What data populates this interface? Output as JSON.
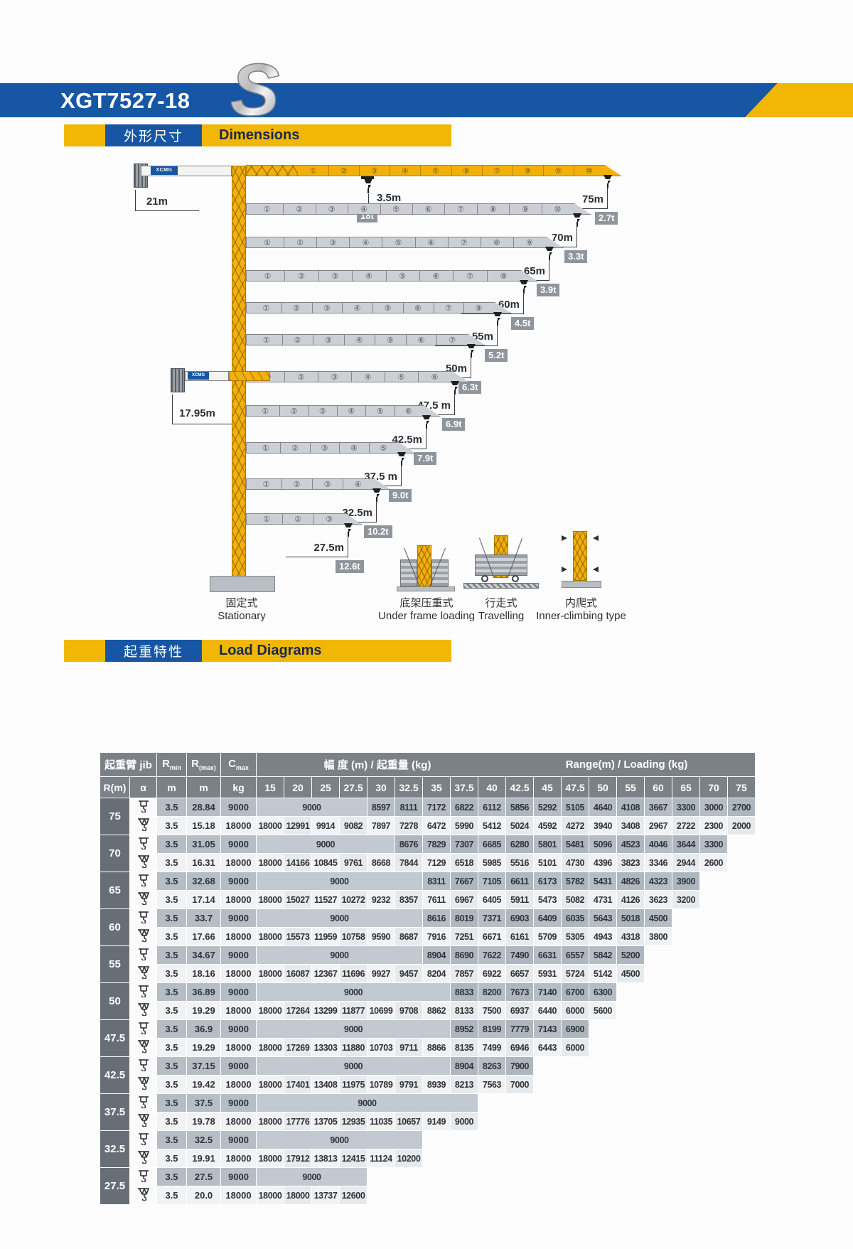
{
  "header": {
    "model": "XGT7527-18",
    "logo_letter": "S"
  },
  "sections": {
    "dimensions": {
      "zh": "外形尺寸",
      "en": "Dimensions"
    },
    "load": {
      "zh": "起重特性",
      "en": "Load Diagrams"
    }
  },
  "colors": {
    "brand_blue": "#1656a4",
    "brand_yellow": "#f2b705",
    "table_header_grey": "#7b8187"
  },
  "diagram": {
    "brand": "XCMG",
    "counter_jib_length": "21m",
    "counter_jib2_length": "17.95m",
    "hook_min_radius": "3.5m",
    "max_capacity": "18t",
    "jibs": [
      {
        "length": "75m",
        "tip_load": "2.7t",
        "segments": 10,
        "main": true
      },
      {
        "length": "70m",
        "tip_load": "3.3t",
        "segments": 10,
        "main": false
      },
      {
        "length": "65m",
        "tip_load": "3.9t",
        "segments": 9,
        "main": false
      },
      {
        "length": "60m",
        "tip_load": "4.5t",
        "segments": 8,
        "main": false
      },
      {
        "length": "55m",
        "tip_load": "5.2t",
        "segments": 8,
        "main": false
      },
      {
        "length": "50m",
        "tip_load": "6.3t",
        "segments": 7,
        "main": false
      },
      {
        "length": "47.5 m",
        "tip_load": "6.9t",
        "segments": 6,
        "main": false
      },
      {
        "length": "42.5m",
        "tip_load": "7.9t",
        "segments": 6,
        "main": false
      },
      {
        "length": "37.5 m",
        "tip_load": "9.0t",
        "segments": 5,
        "main": false
      },
      {
        "length": "32.5m",
        "tip_load": "10.2t",
        "segments": 4,
        "main": false
      },
      {
        "length": "27.5m",
        "tip_load": "12.6t",
        "segments": 3,
        "main": false
      }
    ],
    "bases": [
      {
        "zh": "固定式",
        "en": "Stationary"
      },
      {
        "zh": "底架压重式",
        "en": "Under frame loading"
      },
      {
        "zh": "行走式",
        "en": "Travelling"
      },
      {
        "zh": "内爬式",
        "en": "Inner-climbing type"
      }
    ]
  },
  "table": {
    "header": {
      "jib_zh": "起重臂",
      "jib_en": "jib",
      "r_m": "R(m)",
      "alpha": "α",
      "rmin_base": "R",
      "rmin_sub": "min",
      "rmax_base": "R",
      "rmax_sub": "(max)",
      "cmax_base": "C",
      "cmax_sub": "max",
      "units": [
        "m",
        "m",
        "kg"
      ],
      "range_zh": "幅 度 (m) / 起重量 (kg)",
      "range_en": "Range(m) / Loading (kg)"
    },
    "radii": [
      "15",
      "20",
      "25",
      "27.5",
      "30",
      "32.5",
      "35",
      "37.5",
      "40",
      "42.5",
      "45",
      "47.5",
      "50",
      "55",
      "60",
      "65",
      "70",
      "75"
    ],
    "groups": [
      {
        "radius": "75",
        "rows": [
          {
            "icon": "hook-2-fall",
            "rmin": "3.5",
            "rmax": "28.84",
            "cmax": "9000",
            "span": 4,
            "span_value": "9000",
            "values": [
              8597,
              8111,
              7172,
              6822,
              6112,
              5856,
              5292,
              5105,
              4640,
              4108,
              3667,
              3300,
              3000,
              2700
            ]
          },
          {
            "icon": "hook-4-fall",
            "rmin": "3.5",
            "rmax": "15.18",
            "cmax": "18000",
            "span": 0,
            "span_value": "",
            "values": [
              18000,
              12991,
              9914,
              9082,
              7897,
              7278,
              6472,
              5990,
              5412,
              5024,
              4592,
              4272,
              3940,
              3408,
              2967,
              2722,
              2300,
              2000
            ]
          }
        ]
      },
      {
        "radius": "70",
        "rows": [
          {
            "icon": "hook-2-fall",
            "rmin": "3.5",
            "rmax": "31.05",
            "cmax": "9000",
            "span": 5,
            "span_value": "9000",
            "values": [
              8676,
              7829,
              7307,
              6685,
              6280,
              5801,
              5481,
              5096,
              4523,
              4046,
              3644,
              3300
            ]
          },
          {
            "icon": "hook-4-fall",
            "rmin": "3.5",
            "rmax": "16.31",
            "cmax": "18000",
            "span": 0,
            "span_value": "",
            "values": [
              18000,
              14166,
              10845,
              9761,
              8668,
              7844,
              7129,
              6518,
              5985,
              5516,
              5101,
              4730,
              4396,
              3823,
              3346,
              2944,
              2600
            ]
          }
        ]
      },
      {
        "radius": "65",
        "rows": [
          {
            "icon": "hook-2-fall",
            "rmin": "3.5",
            "rmax": "32.68",
            "cmax": "9000",
            "span": 6,
            "span_value": "9000",
            "values": [
              8311,
              7667,
              7105,
              6611,
              6173,
              5782,
              5431,
              4826,
              4323,
              3900
            ]
          },
          {
            "icon": "hook-4-fall",
            "rmin": "3.5",
            "rmax": "17.14",
            "cmax": "18000",
            "span": 0,
            "span_value": "",
            "values": [
              18000,
              15027,
              11527,
              10272,
              9232,
              8357,
              7611,
              6967,
              6405,
              5911,
              5473,
              5082,
              4731,
              4126,
              3623,
              3200
            ]
          }
        ]
      },
      {
        "radius": "60",
        "rows": [
          {
            "icon": "hook-2-fall",
            "rmin": "3.5",
            "rmax": "33.7",
            "cmax": "9000",
            "span": 6,
            "span_value": "9000",
            "values": [
              8616,
              8019,
              7371,
              6903,
              6409,
              6035,
              5643,
              5018,
              4500
            ]
          },
          {
            "icon": "hook-4-fall",
            "rmin": "3.5",
            "rmax": "17.66",
            "cmax": "18000",
            "span": 0,
            "span_value": "",
            "values": [
              18000,
              15573,
              11959,
              10758,
              9590,
              8687,
              7916,
              7251,
              6671,
              6161,
              5709,
              5305,
              4943,
              4318,
              3800
            ]
          }
        ]
      },
      {
        "radius": "55",
        "rows": [
          {
            "icon": "hook-2-fall",
            "rmin": "3.5",
            "rmax": "34.67",
            "cmax": "9000",
            "span": 6,
            "span_value": "9000",
            "values": [
              8904,
              8690,
              7622,
              7490,
              6631,
              6557,
              5842,
              5200
            ]
          },
          {
            "icon": "hook-4-fall",
            "rmin": "3.5",
            "rmax": "18.16",
            "cmax": "18000",
            "span": 0,
            "span_value": "",
            "values": [
              18000,
              16087,
              12367,
              11696,
              9927,
              9457,
              8204,
              7857,
              6922,
              6657,
              5931,
              5724,
              5142,
              4500
            ]
          }
        ]
      },
      {
        "radius": "50",
        "rows": [
          {
            "icon": "hook-2-fall",
            "rmin": "3.5",
            "rmax": "36.89",
            "cmax": "9000",
            "span": 7,
            "span_value": "9000",
            "values": [
              8833,
              8200,
              7673,
              7140,
              6700,
              6300
            ]
          },
          {
            "icon": "hook-4-fall",
            "rmin": "3.5",
            "rmax": "19.29",
            "cmax": "18000",
            "span": 0,
            "span_value": "",
            "values": [
              18000,
              17264,
              13299,
              11877,
              10699,
              9708,
              8862,
              8133,
              7500,
              6937,
              6440,
              6000,
              5600
            ]
          }
        ]
      },
      {
        "radius": "47.5",
        "rows": [
          {
            "icon": "hook-2-fall",
            "rmin": "3.5",
            "rmax": "36.9",
            "cmax": "9000",
            "span": 7,
            "span_value": "9000",
            "values": [
              8952,
              8199,
              7779,
              7143,
              6900
            ]
          },
          {
            "icon": "hook-4-fall",
            "rmin": "3.5",
            "rmax": "19.29",
            "cmax": "18000",
            "span": 0,
            "span_value": "",
            "values": [
              18000,
              17269,
              13303,
              11880,
              10703,
              9711,
              8866,
              8135,
              7499,
              6946,
              6443,
              6000
            ]
          }
        ]
      },
      {
        "radius": "42.5",
        "rows": [
          {
            "icon": "hook-2-fall",
            "rmin": "3.5",
            "rmax": "37.15",
            "cmax": "9000",
            "span": 7,
            "span_value": "9000",
            "values": [
              8904,
              8263,
              7900
            ]
          },
          {
            "icon": "hook-4-fall",
            "rmin": "3.5",
            "rmax": "19.42",
            "cmax": "18000",
            "span": 0,
            "span_value": "",
            "values": [
              18000,
              17401,
              13408,
              11975,
              10789,
              9791,
              8939,
              8213,
              7563,
              7000
            ]
          }
        ]
      },
      {
        "radius": "37.5",
        "rows": [
          {
            "icon": "hook-2-fall",
            "rmin": "3.5",
            "rmax": "37.5",
            "cmax": "9000",
            "span": 8,
            "span_value": "9000",
            "values": []
          },
          {
            "icon": "hook-4-fall",
            "rmin": "3.5",
            "rmax": "19.78",
            "cmax": "18000",
            "span": 0,
            "span_value": "",
            "values": [
              18000,
              17776,
              13705,
              12935,
              11035,
              10657,
              9149,
              9000
            ]
          }
        ]
      },
      {
        "radius": "32.5",
        "rows": [
          {
            "icon": "hook-2-fall",
            "rmin": "3.5",
            "rmax": "32.5",
            "cmax": "9000",
            "span": 6,
            "span_value": "9000",
            "values": []
          },
          {
            "icon": "hook-4-fall",
            "rmin": "3.5",
            "rmax": "19.91",
            "cmax": "18000",
            "span": 0,
            "span_value": "",
            "values": [
              18000,
              17912,
              13813,
              12415,
              11124,
              10200
            ]
          }
        ]
      },
      {
        "radius": "27.5",
        "rows": [
          {
            "icon": "hook-2-fall",
            "rmin": "3.5",
            "rmax": "27.5",
            "cmax": "9000",
            "span": 4,
            "span_value": "9000",
            "values": []
          },
          {
            "icon": "hook-4-fall",
            "rmin": "3.5",
            "rmax": "20.0",
            "cmax": "18000",
            "span": 0,
            "span_value": "",
            "values": [
              18000,
              18000,
              13737,
              12600
            ]
          }
        ]
      }
    ]
  }
}
